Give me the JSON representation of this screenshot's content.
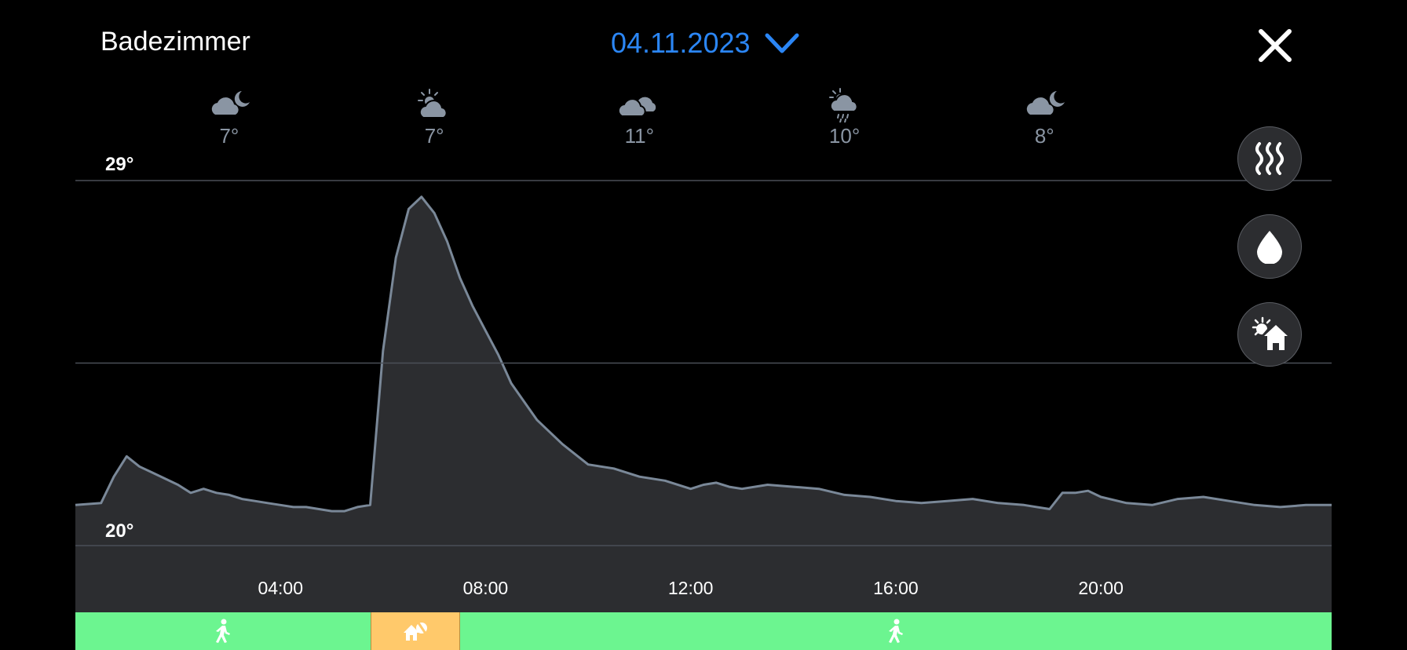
{
  "header": {
    "room": "Badezimmer",
    "date": "04.11.2023"
  },
  "weather": [
    {
      "time": 3.0,
      "icon": "cloud-moon-icon",
      "temp": "7°"
    },
    {
      "time": 7.0,
      "icon": "cloud-sun-icon",
      "temp": "7°"
    },
    {
      "time": 11.0,
      "icon": "cloud-icon",
      "temp": "11°"
    },
    {
      "time": 15.0,
      "icon": "cloud-sun-rain-icon",
      "temp": "10°"
    },
    {
      "time": 18.9,
      "icon": "cloud-moon-icon",
      "temp": "8°"
    }
  ],
  "side_buttons": [
    {
      "name": "heating-button",
      "icon": "heat-waves-icon"
    },
    {
      "name": "humidity-button",
      "icon": "water-drop-icon"
    },
    {
      "name": "outdoor-button",
      "icon": "sun-house-icon"
    }
  ],
  "colors": {
    "accent": "#2b86f5",
    "presence": "#6cf590",
    "away": "#ffc96b",
    "chart_fill": "#2c2d30",
    "chart_line": "#7a8898"
  },
  "chart_data": {
    "type": "area",
    "title": "",
    "xlabel": "",
    "ylabel": "",
    "xlim": [
      0,
      24.5
    ],
    "ylim": [
      20,
      29
    ],
    "y_tick_labels": [
      "29°",
      "20°"
    ],
    "gridlines": [
      20,
      24.5,
      29
    ],
    "x_ticks": [
      {
        "value": 4,
        "label": "04:00"
      },
      {
        "value": 8,
        "label": "08:00"
      },
      {
        "value": 12,
        "label": "12:00"
      },
      {
        "value": 16,
        "label": "16:00"
      },
      {
        "value": 20,
        "label": "20:00"
      }
    ],
    "series": [
      {
        "x": [
          0,
          0.5,
          0.75,
          1.0,
          1.25,
          1.5,
          2.0,
          2.25,
          2.5,
          2.75,
          3.0,
          3.25,
          3.5,
          3.75,
          4.0,
          4.25,
          4.5,
          4.75,
          5.0,
          5.25,
          5.5,
          5.75,
          6.0,
          6.25,
          6.5,
          6.75,
          7.0,
          7.25,
          7.5,
          7.75,
          8.0,
          8.25,
          8.5,
          9.0,
          9.5,
          10.0,
          10.5,
          11.0,
          11.5,
          12.0,
          12.25,
          12.5,
          12.75,
          13.0,
          13.5,
          14.0,
          14.5,
          15.0,
          15.5,
          16.0,
          16.5,
          17.0,
          17.5,
          18.0,
          18.5,
          19.0,
          19.25,
          19.5,
          19.75,
          20.0,
          20.5,
          21.0,
          21.5,
          22.0,
          22.5,
          23.0,
          23.5,
          24.0,
          24.5
        ],
        "y": [
          21.0,
          21.05,
          21.7,
          22.2,
          21.95,
          21.8,
          21.5,
          21.3,
          21.4,
          21.3,
          21.25,
          21.15,
          21.1,
          21.05,
          21.0,
          20.95,
          20.95,
          20.9,
          20.85,
          20.85,
          20.95,
          21.0,
          24.8,
          27.1,
          28.3,
          28.6,
          28.2,
          27.5,
          26.6,
          25.9,
          25.3,
          24.7,
          24.0,
          23.1,
          22.5,
          22.0,
          21.9,
          21.7,
          21.6,
          21.4,
          21.5,
          21.55,
          21.45,
          21.4,
          21.5,
          21.45,
          21.4,
          21.25,
          21.2,
          21.1,
          21.05,
          21.1,
          21.15,
          21.05,
          21.0,
          20.9,
          21.3,
          21.3,
          21.35,
          21.2,
          21.05,
          21.0,
          21.15,
          21.2,
          21.1,
          21.0,
          20.95,
          21.0,
          21.0
        ]
      }
    ]
  },
  "modes": [
    {
      "start": 0,
      "end": 5.75,
      "icon": "walking-person-icon",
      "color_key": "presence"
    },
    {
      "start": 5.75,
      "end": 7.5,
      "icon": "away-vacation-icon",
      "color_key": "away"
    },
    {
      "start": 7.5,
      "end": 24.5,
      "icon": "walking-person-icon",
      "color_key": "presence"
    }
  ]
}
